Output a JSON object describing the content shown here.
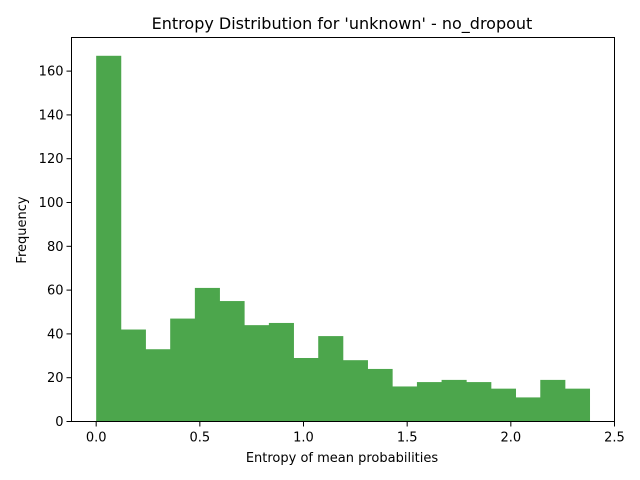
{
  "chart_data": {
    "type": "bar",
    "title": "Entropy Distribution for 'unknown' - no_dropout",
    "xlabel": "Entropy of mean probabilities",
    "ylabel": "Frequency",
    "xlim": [
      -0.119,
      2.5
    ],
    "ylim": [
      0,
      175.35
    ],
    "x_ticks": [
      0.0,
      0.5,
      1.0,
      1.5,
      2.0,
      2.5
    ],
    "x_tick_labels": [
      "0.0",
      "0.5",
      "1.0",
      "1.5",
      "2.0",
      "2.5"
    ],
    "y_ticks": [
      0,
      20,
      40,
      60,
      80,
      100,
      120,
      140,
      160
    ],
    "y_tick_labels": [
      "0",
      "20",
      "40",
      "60",
      "80",
      "100",
      "120",
      "140",
      "160"
    ],
    "bin_edges": [
      0.0,
      0.119,
      0.238,
      0.357,
      0.476,
      0.595,
      0.714,
      0.833,
      0.952,
      1.071,
      1.19,
      1.309,
      1.428,
      1.547,
      1.666,
      1.785,
      1.904,
      2.023,
      2.142,
      2.261,
      2.38
    ],
    "values": [
      167,
      42,
      33,
      47,
      61,
      55,
      44,
      45,
      29,
      39,
      28,
      24,
      16,
      18,
      19,
      18,
      15,
      11,
      19,
      15
    ],
    "bar_color": "#4ca64c",
    "grid": false
  }
}
